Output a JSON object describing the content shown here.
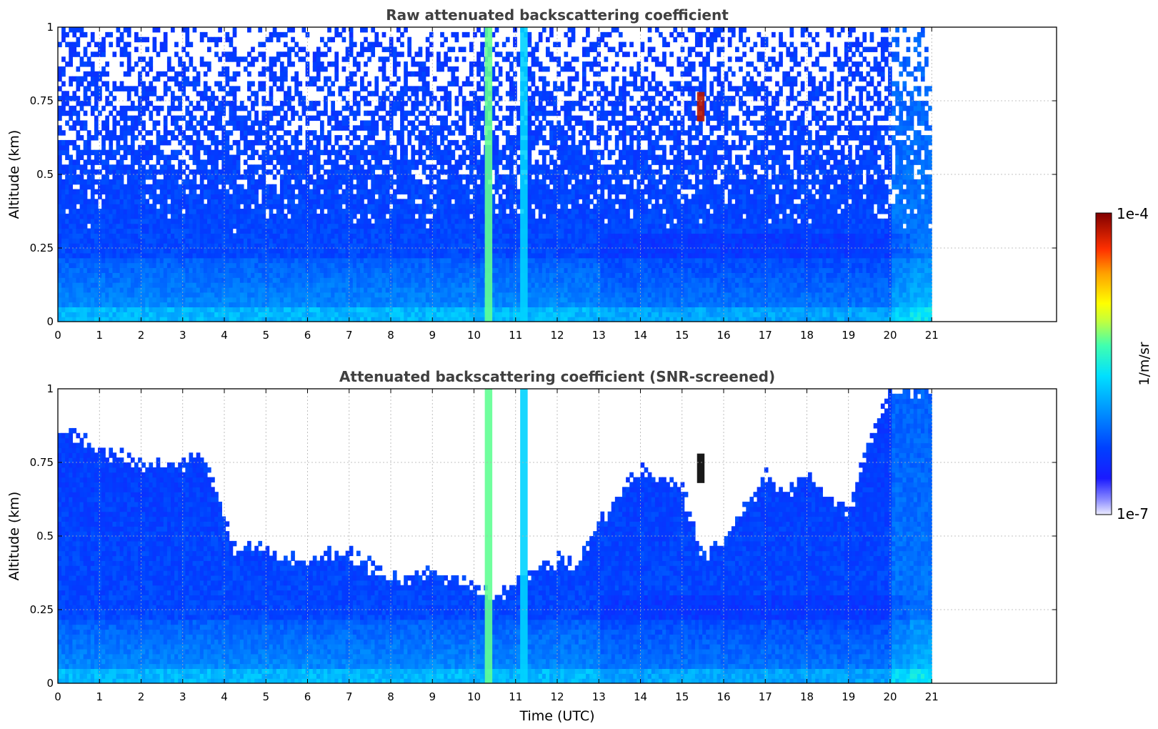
{
  "chart_data": [
    {
      "type": "heatmap",
      "title": "Raw attenuated backscattering coefficient",
      "xlabel": "",
      "ylabel": "Altitude (km)",
      "xlim": [
        0,
        24
      ],
      "ylim": [
        0,
        1
      ],
      "x_ticks": [
        "0",
        "1",
        "2",
        "3",
        "4",
        "5",
        "6",
        "7",
        "8",
        "9",
        "10",
        "11",
        "12",
        "13",
        "14",
        "15",
        "16",
        "17",
        "18",
        "19",
        "20",
        "21"
      ],
      "y_ticks": [
        "0",
        "0.25",
        "0.5",
        "0.75",
        "1"
      ],
      "grid": true,
      "data_end_hour": 21,
      "screened": false,
      "features": [
        {
          "x": 10.35,
          "y_range": [
            0,
            1
          ],
          "level": "high"
        },
        {
          "x": 11.2,
          "y_range": [
            0,
            1
          ],
          "level": "medium"
        },
        {
          "x": 15.45,
          "y_range": [
            0.68,
            0.78
          ],
          "level": "max"
        }
      ]
    },
    {
      "type": "heatmap",
      "title": "Attenuated backscattering coefficient (SNR-screened)",
      "xlabel": "Time (UTC)",
      "ylabel": "Altitude (km)",
      "xlim": [
        0,
        24
      ],
      "ylim": [
        0,
        1
      ],
      "x_ticks": [
        "0",
        "1",
        "2",
        "3",
        "4",
        "5",
        "6",
        "7",
        "8",
        "9",
        "10",
        "11",
        "12",
        "13",
        "14",
        "15",
        "16",
        "17",
        "18",
        "19",
        "20",
        "21"
      ],
      "y_ticks": [
        "0",
        "0.25",
        "0.5",
        "0.75",
        "1"
      ],
      "grid": true,
      "data_end_hour": 21,
      "screened": true,
      "features": [
        {
          "x": 10.35,
          "y_range": [
            0,
            1
          ],
          "level": "high"
        },
        {
          "x": 11.2,
          "y_range": [
            0,
            1
          ],
          "level": "medium"
        },
        {
          "x": 15.45,
          "y_range": [
            0.68,
            0.78
          ],
          "level": "max"
        }
      ]
    }
  ],
  "colorbar": {
    "label": "1/m/sr",
    "max_label": "1e-4",
    "min_label": "1e-7",
    "scale": "log",
    "range": [
      1e-07,
      0.0001
    ],
    "colors": [
      "#e8e8ff",
      "#1010ff",
      "#00a0ff",
      "#00ffff",
      "#ffff00",
      "#ff8000",
      "#ff0000",
      "#800000"
    ]
  }
}
